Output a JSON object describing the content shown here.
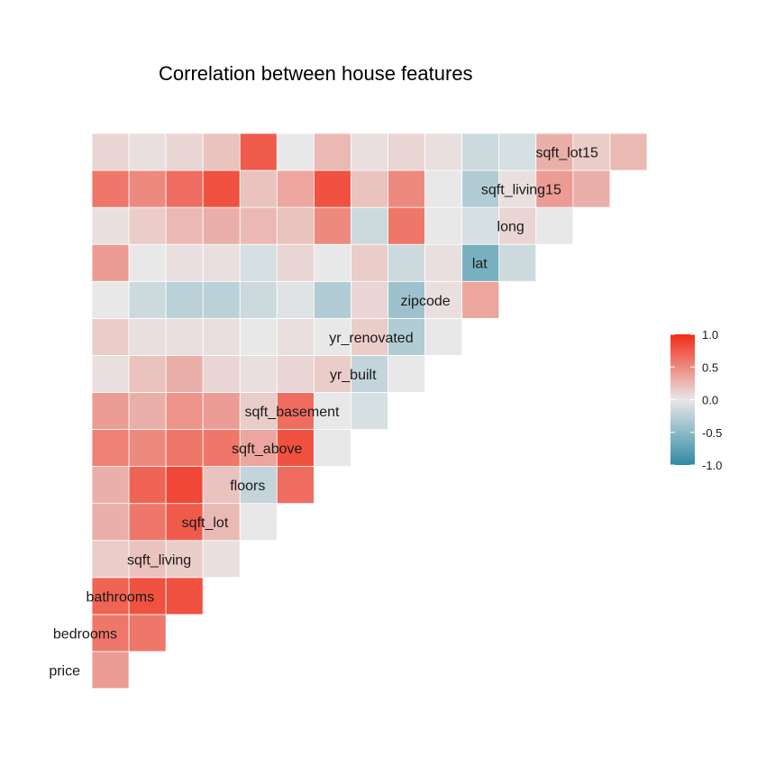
{
  "chart_data": {
    "type": "heatmap",
    "title": "Correlation between house features",
    "variables": [
      "price",
      "bedrooms",
      "bathrooms",
      "sqft_living",
      "sqft_lot",
      "floors",
      "sqft_above",
      "sqft_basement",
      "yr_built",
      "yr_renovated",
      "zipcode",
      "lat",
      "long",
      "sqft_living15",
      "sqft_lot15"
    ],
    "layout": "lower-triangle; each row variable labeled at left of its first cell; columns in same order",
    "matrix": [
      [
        0.4
      ],
      [
        0.6,
        0.6
      ],
      [
        0.7,
        0.8,
        0.8
      ],
      [
        0.15,
        0.2,
        0.15,
        0.05
      ],
      [
        0.3,
        0.6,
        0.75,
        0.25,
        0.0
      ],
      [
        0.3,
        0.7,
        0.85,
        0.2,
        -0.2,
        0.65
      ],
      [
        0.55,
        0.5,
        0.6,
        0.6,
        0.35,
        0.8,
        0.0
      ],
      [
        0.4,
        0.3,
        0.45,
        0.4,
        0.15,
        0.65,
        0.0,
        -0.1
      ],
      [
        0.05,
        0.2,
        0.3,
        0.1,
        0.05,
        0.1,
        0.15,
        -0.2,
        0.0
      ],
      [
        0.15,
        0.05,
        0.05,
        0.05,
        0.0,
        0.05,
        0.0,
        0.15,
        -0.3,
        0.0
      ],
      [
        0.0,
        -0.15,
        -0.25,
        -0.25,
        -0.15,
        -0.05,
        -0.3,
        0.1,
        -0.4,
        0.05,
        0.35
      ],
      [
        0.4,
        0.0,
        0.05,
        0.05,
        -0.1,
        0.1,
        0.0,
        0.15,
        -0.15,
        0.05,
        -0.6,
        -0.15
      ],
      [
        0.05,
        0.15,
        0.25,
        0.3,
        0.25,
        0.2,
        0.5,
        -0.15,
        0.6,
        0.0,
        -0.1,
        0.1,
        0.0
      ],
      [
        0.6,
        0.5,
        0.65,
        0.8,
        0.2,
        0.35,
        0.8,
        0.2,
        0.5,
        0.0,
        -0.3,
        0.05,
        0.4,
        0.3
      ],
      [
        0.1,
        0.05,
        0.1,
        0.2,
        0.75,
        0.0,
        0.25,
        0.05,
        0.1,
        0.05,
        -0.15,
        -0.1,
        0.3,
        0.15,
        0.25
      ]
    ],
    "legend": {
      "position": "right",
      "ticks": [
        "1.0",
        "0.5",
        "0.0",
        "-0.5",
        "-1.0"
      ],
      "tick_values": [
        1.0,
        0.5,
        0.0,
        -0.5,
        -1.0
      ],
      "range": [
        -1,
        1
      ]
    },
    "colors": {
      "high": "#f22b16",
      "mid": "#e8e8e8",
      "low": "#2f8aa5"
    },
    "grid": false
  }
}
